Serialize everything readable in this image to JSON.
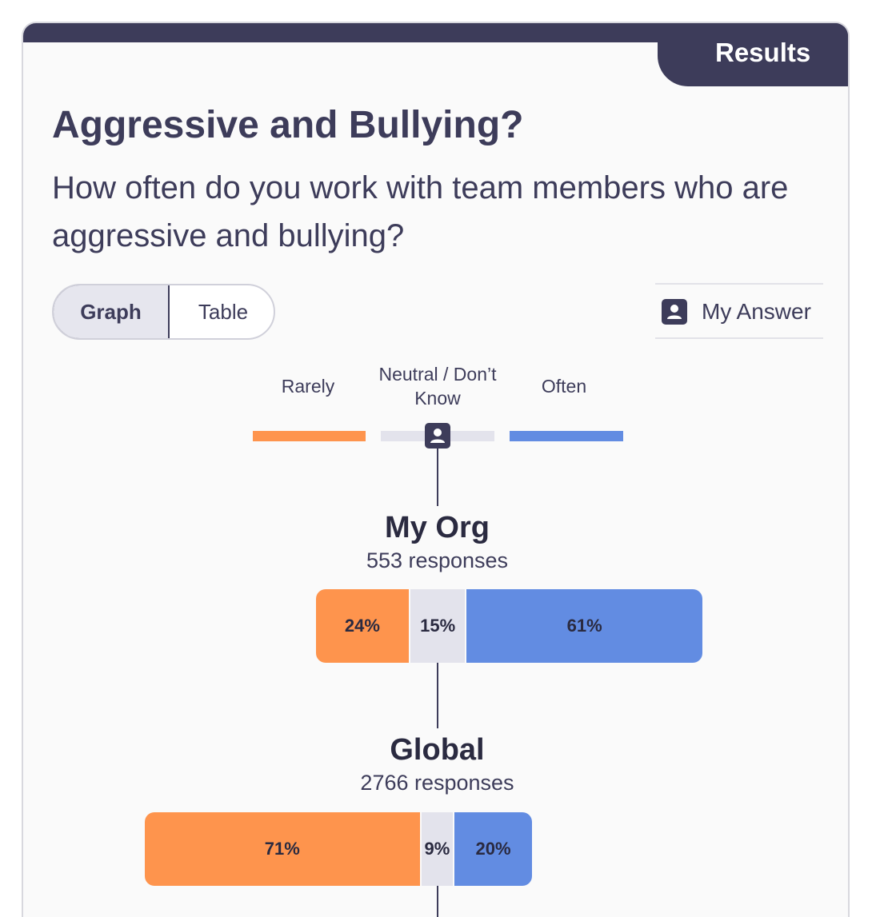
{
  "header": {
    "tab_label": "Results"
  },
  "question": {
    "title": "Aggressive and Bullying?",
    "text": "How often do you work with team members who are aggressive and bullying?"
  },
  "view_toggle": {
    "graph_label": "Graph",
    "table_label": "Table",
    "selected": "Graph"
  },
  "my_answer": {
    "label": "My Answer",
    "icon": "user-icon",
    "value": "Neutral / Don’t Know"
  },
  "legend": {
    "items": [
      {
        "label": "Rarely",
        "color": "#fe944d"
      },
      {
        "label": "Neutral / Don’t Know",
        "color": "#e3e3ec"
      },
      {
        "label": "Often",
        "color": "#628ce2"
      }
    ]
  },
  "colors": {
    "accent_dark": "#3d3c5a",
    "rarely": "#fe944d",
    "neutral": "#e3e3ec",
    "often": "#628ce2"
  },
  "chart_data": {
    "type": "bar",
    "orientation": "horizontal-stacked",
    "categories": [
      "Rarely",
      "Neutral / Don’t Know",
      "Often"
    ],
    "groups": [
      {
        "name": "My Org",
        "responses_label": "553 responses",
        "values": [
          24,
          15,
          61
        ],
        "labels": [
          "24%",
          "15%",
          "61%"
        ]
      },
      {
        "name": "Global",
        "responses_label": "2766 responses",
        "values": [
          71,
          9,
          20
        ],
        "labels": [
          "71%",
          "9%",
          "20%"
        ]
      }
    ]
  }
}
